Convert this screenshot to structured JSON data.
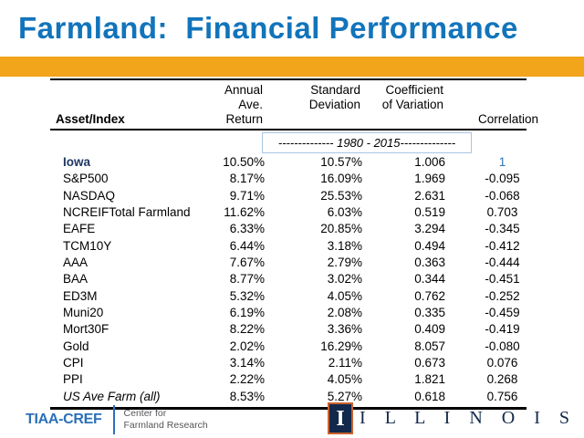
{
  "slide": {
    "title": "Farmland:  Financial Performance"
  },
  "colors": {
    "title_blue": "#1274BB",
    "orange_bar": "#F2A41B",
    "iowa_navy": "#1F3864",
    "iowa_correlation_blue": "#2E75B6",
    "date_box_border": "#A8C6E4",
    "tiaa_blue": "#2B70B8",
    "footer_gray": "#55565A",
    "illinois_navy": "#13294B",
    "illinois_orange": "#C9622F"
  },
  "table": {
    "headers": {
      "asset": "Asset/Index",
      "return_line1": "Annual Ave.",
      "return_line2": "Return",
      "std_line1": "Standard",
      "std_line2": "Deviation",
      "cv_line1": "Coefficient",
      "cv_line2": "of Variation",
      "corr_line2": "Correlation"
    },
    "period_label": "-------------- 1980 - 2015--------------",
    "rows": [
      {
        "asset": "Iowa",
        "ret": "10.50%",
        "std": "10.57%",
        "cv": "1.006",
        "corr": "1",
        "style": "highlight"
      },
      {
        "asset": "S&P500",
        "ret": "8.17%",
        "std": "16.09%",
        "cv": "1.969",
        "corr": "-0.095",
        "style": ""
      },
      {
        "asset": "NASDAQ",
        "ret": "9.71%",
        "std": "25.53%",
        "cv": "2.631",
        "corr": "-0.068",
        "style": ""
      },
      {
        "asset": "NCREIFTotal Farmland",
        "ret": "11.62%",
        "std": "6.03%",
        "cv": "0.519",
        "corr": "0.703",
        "style": ""
      },
      {
        "asset": "EAFE",
        "ret": "6.33%",
        "std": "20.85%",
        "cv": "3.294",
        "corr": "-0.345",
        "style": ""
      },
      {
        "asset": "TCM10Y",
        "ret": "6.44%",
        "std": "3.18%",
        "cv": "0.494",
        "corr": "-0.412",
        "style": ""
      },
      {
        "asset": "AAA",
        "ret": "7.67%",
        "std": "2.79%",
        "cv": "0.363",
        "corr": "-0.444",
        "style": ""
      },
      {
        "asset": "BAA",
        "ret": "8.77%",
        "std": "3.02%",
        "cv": "0.344",
        "corr": "-0.451",
        "style": ""
      },
      {
        "asset": "ED3M",
        "ret": "5.32%",
        "std": "4.05%",
        "cv": "0.762",
        "corr": "-0.252",
        "style": ""
      },
      {
        "asset": "Muni20",
        "ret": "6.19%",
        "std": "2.08%",
        "cv": "0.335",
        "corr": "-0.459",
        "style": ""
      },
      {
        "asset": "Mort30F",
        "ret": "8.22%",
        "std": "3.36%",
        "cv": "0.409",
        "corr": "-0.419",
        "style": ""
      },
      {
        "asset": "Gold",
        "ret": "2.02%",
        "std": "16.29%",
        "cv": "8.057",
        "corr": "-0.080",
        "style": ""
      },
      {
        "asset": "CPI",
        "ret": "3.14%",
        "std": "2.11%",
        "cv": "0.673",
        "corr": "0.076",
        "style": ""
      },
      {
        "asset": "PPI",
        "ret": "2.22%",
        "std": "4.05%",
        "cv": "1.821",
        "corr": "0.268",
        "style": ""
      },
      {
        "asset": "US Ave Farm (all)",
        "ret": "8.53%",
        "std": "5.27%",
        "cv": "0.618",
        "corr": "0.756",
        "style": "italic-row"
      }
    ]
  },
  "footer": {
    "tiaa_logo": "TIAA-CREF",
    "center_line1": "Center for",
    "center_line2": "Farmland Research",
    "illinois_block_letter": "I",
    "illinois_word": "I L L I N O I S"
  }
}
